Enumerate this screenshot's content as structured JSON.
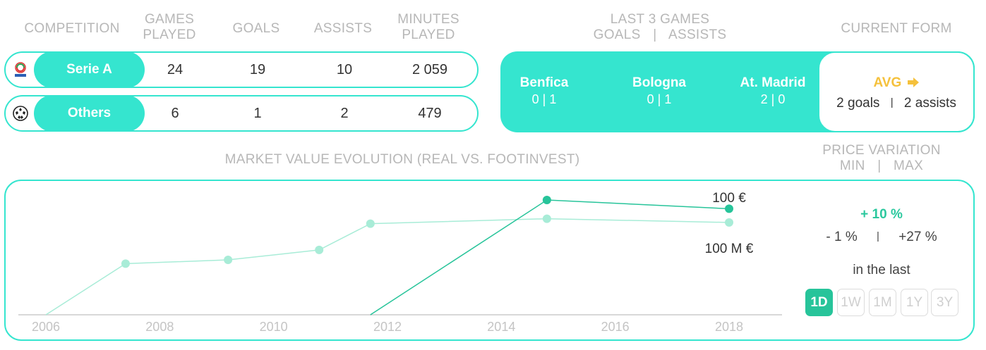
{
  "stats_header": {
    "competition": "COMPETITION",
    "games_played_1": "GAMES",
    "games_played_2": "PLAYED",
    "goals": "GOALS",
    "assists": "ASSISTS",
    "minutes_played_1": "MINUTES",
    "minutes_played_2": "PLAYED"
  },
  "stats_rows": [
    {
      "competition": "Serie A",
      "logo_icon": "serie-a-logo-icon",
      "games": "24",
      "goals": "19",
      "assists": "10",
      "minutes": "2 059"
    },
    {
      "competition": "Others",
      "logo_icon": "champions-league-ball-icon",
      "games": "6",
      "goals": "1",
      "assists": "2",
      "minutes": "479"
    }
  ],
  "last_games": {
    "header_1": "LAST 3 GAMES",
    "header_2_goals": "GOALS",
    "header_2_sep": "|",
    "header_2_assists": "ASSISTS",
    "games": [
      {
        "team": "Benfica",
        "score": "0 | 1"
      },
      {
        "team": "Bologna",
        "score": "0 | 1"
      },
      {
        "team": "At. Madrid",
        "score": "2 | 0"
      }
    ]
  },
  "current_form": {
    "header": "CURRENT FORM",
    "label": "AVG",
    "arrow_icon": "arrow-right-icon",
    "goals": "2 goals",
    "sep": "|",
    "assists": "2 assists"
  },
  "market_value": {
    "header": "MARKET VALUE EVOLUTION (REAL VS. FOOTINVEST)",
    "label_top": "100 €",
    "label_bottom": "100 M €"
  },
  "price_variation": {
    "header_1": "PRICE VARIATION",
    "header_2_min": "MIN",
    "header_2_sep": "|",
    "header_2_max": "MAX",
    "change": "+ 10 %",
    "min": "- 1 %",
    "sep": "|",
    "max": "+27 %",
    "in_the_last": "in the last",
    "periods": [
      "1D",
      "1W",
      "1M",
      "1Y",
      "3Y"
    ],
    "active_period": "1D"
  },
  "colors": {
    "accent": "#35e5cf",
    "dark_green": "#27c49a",
    "light_series": "#a8ecd7",
    "gold": "#f5c13c"
  },
  "chart_data": {
    "type": "line",
    "x_ticks": [
      "2006",
      "2008",
      "2010",
      "2012",
      "2014",
      "2016",
      "2018"
    ],
    "xlim": [
      2006,
      2019.3
    ],
    "series": [
      {
        "values": [
          [
            2006,
            0.0
          ],
          [
            2007.4,
            0.41
          ],
          [
            2009.2,
            0.44
          ],
          [
            2010.8,
            0.52
          ],
          [
            2011.7,
            0.73
          ],
          [
            2014.8,
            0.77
          ],
          [
            2018,
            0.74
          ]
        ]
      },
      {
        "values": [
          [
            2011.7,
            0.0
          ],
          [
            2014.8,
            0.92
          ],
          [
            2018,
            0.85
          ]
        ]
      }
    ],
    "annotations": [
      "100 €",
      "100 M €"
    ]
  }
}
